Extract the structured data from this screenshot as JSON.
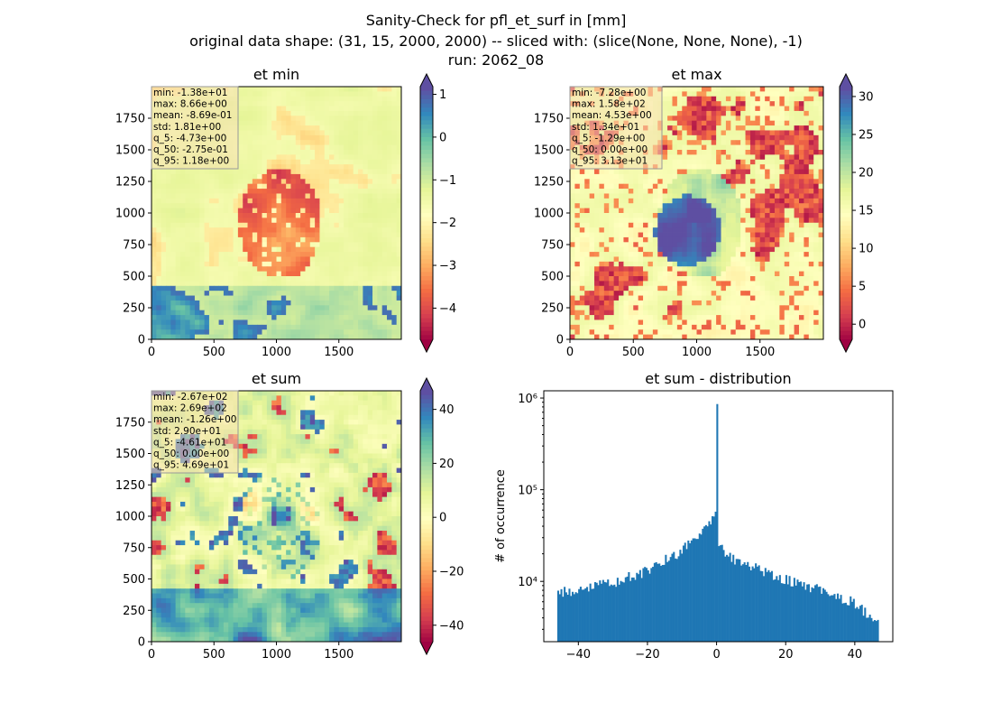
{
  "figure": {
    "title_lines": [
      "Sanity-Check for pfl_et_surf in [mm]",
      "original data shape: (31, 15, 2000, 2000) -- sliced with: (slice(None, None, None), -1)",
      "run: 2062_08"
    ]
  },
  "chart_data": [
    {
      "type": "heatmap",
      "title": "et min",
      "xlabel": "",
      "ylabel": "",
      "xlim": [
        0,
        2000
      ],
      "ylim": [
        0,
        2000
      ],
      "xticks": [
        "0",
        "500",
        "1000",
        "1500"
      ],
      "yticks": [
        "0",
        "250",
        "500",
        "750",
        "1000",
        "1250",
        "1500",
        "1750"
      ],
      "colormap": "Spectral",
      "colorbar": {
        "range": [
          -4.73,
          1.18
        ],
        "ticks": [
          "1",
          "0",
          "−1",
          "−2",
          "−3",
          "−4"
        ],
        "tick_values": [
          1,
          0,
          -1,
          -2,
          -3,
          -4
        ],
        "extend": "both"
      },
      "stats": [
        "min: -1.38e+01",
        "max: 8.66e+00",
        "mean: -8.69e-01",
        "std: 1.81e+00",
        "q_5: -4.73e+00",
        "q_50: -2.75e-01",
        "q_95: 1.18e+00"
      ]
    },
    {
      "type": "heatmap",
      "title": "et max",
      "xlabel": "",
      "ylabel": "",
      "xlim": [
        0,
        2000
      ],
      "ylim": [
        0,
        2000
      ],
      "xticks": [
        "0",
        "500",
        "1000",
        "1500"
      ],
      "yticks": [
        "0",
        "250",
        "500",
        "750",
        "1000",
        "1250",
        "1500",
        "1750"
      ],
      "colormap": "Spectral (two-slope)",
      "colorbar": {
        "range": [
          -1.29,
          31.3
        ],
        "ticks": [
          "30",
          "25",
          "20",
          "15",
          "10",
          "5",
          "0"
        ],
        "tick_values": [
          30,
          25,
          20,
          15,
          10,
          5,
          0
        ],
        "extend": "both"
      },
      "stats": [
        "min: -7.28e+00",
        "max: 1.58e+02",
        "mean: 4.53e+00",
        "std: 1.34e+01",
        "q_5: -1.29e+00",
        "q_50: 0.00e+00",
        "q_95: 3.13e+01"
      ]
    },
    {
      "type": "heatmap",
      "title": "et sum",
      "xlabel": "",
      "ylabel": "",
      "xlim": [
        0,
        2000
      ],
      "ylim": [
        0,
        2000
      ],
      "xticks": [
        "0",
        "500",
        "1000",
        "1500"
      ],
      "yticks": [
        "0",
        "250",
        "500",
        "750",
        "1000",
        "1250",
        "1500",
        "1750"
      ],
      "colormap": "Spectral",
      "colorbar": {
        "range": [
          -46.1,
          46.9
        ],
        "ticks": [
          "40",
          "20",
          "0",
          "−20",
          "−40"
        ],
        "tick_values": [
          40,
          20,
          0,
          -20,
          -40
        ],
        "extend": "both"
      },
      "stats": [
        "min: -2.67e+02",
        "max: 2.69e+02",
        "mean: -1.26e+00",
        "std: 2.90e+01",
        "q_5: -4.61e+01",
        "q_50: 0.00e+00",
        "q_95: 4.69e+01"
      ]
    },
    {
      "type": "bar",
      "title": "et sum - distribution",
      "xlabel": "",
      "ylabel": "# of occurrence",
      "yscale": "log",
      "xlim": [
        -50,
        51
      ],
      "ylim": [
        2200,
        1200000
      ],
      "xticks": [
        "−40",
        "−20",
        "0",
        "20",
        "40"
      ],
      "xtick_values": [
        -40,
        -20,
        0,
        20,
        40
      ],
      "yticks": [
        "10⁴",
        "10⁵",
        "10⁶"
      ],
      "bins_range": [
        -46.1,
        46.9
      ],
      "bin_count": 200,
      "color": "#1f77b4",
      "profile_points": [
        {
          "x": -46,
          "y": 7500
        },
        {
          "x": -40,
          "y": 8000
        },
        {
          "x": -30,
          "y": 9800
        },
        {
          "x": -20,
          "y": 13000
        },
        {
          "x": -10,
          "y": 22000
        },
        {
          "x": -5,
          "y": 35000
        },
        {
          "x": -2,
          "y": 45000
        },
        {
          "x": -0.3,
          "y": 52000
        },
        {
          "x": 0,
          "y": 860000
        },
        {
          "x": 0.3,
          "y": 26000
        },
        {
          "x": 2,
          "y": 21000
        },
        {
          "x": 5,
          "y": 17500
        },
        {
          "x": 10,
          "y": 15000
        },
        {
          "x": 20,
          "y": 10500
        },
        {
          "x": 30,
          "y": 8000
        },
        {
          "x": 40,
          "y": 5800
        },
        {
          "x": 46.5,
          "y": 3400
        }
      ]
    }
  ]
}
